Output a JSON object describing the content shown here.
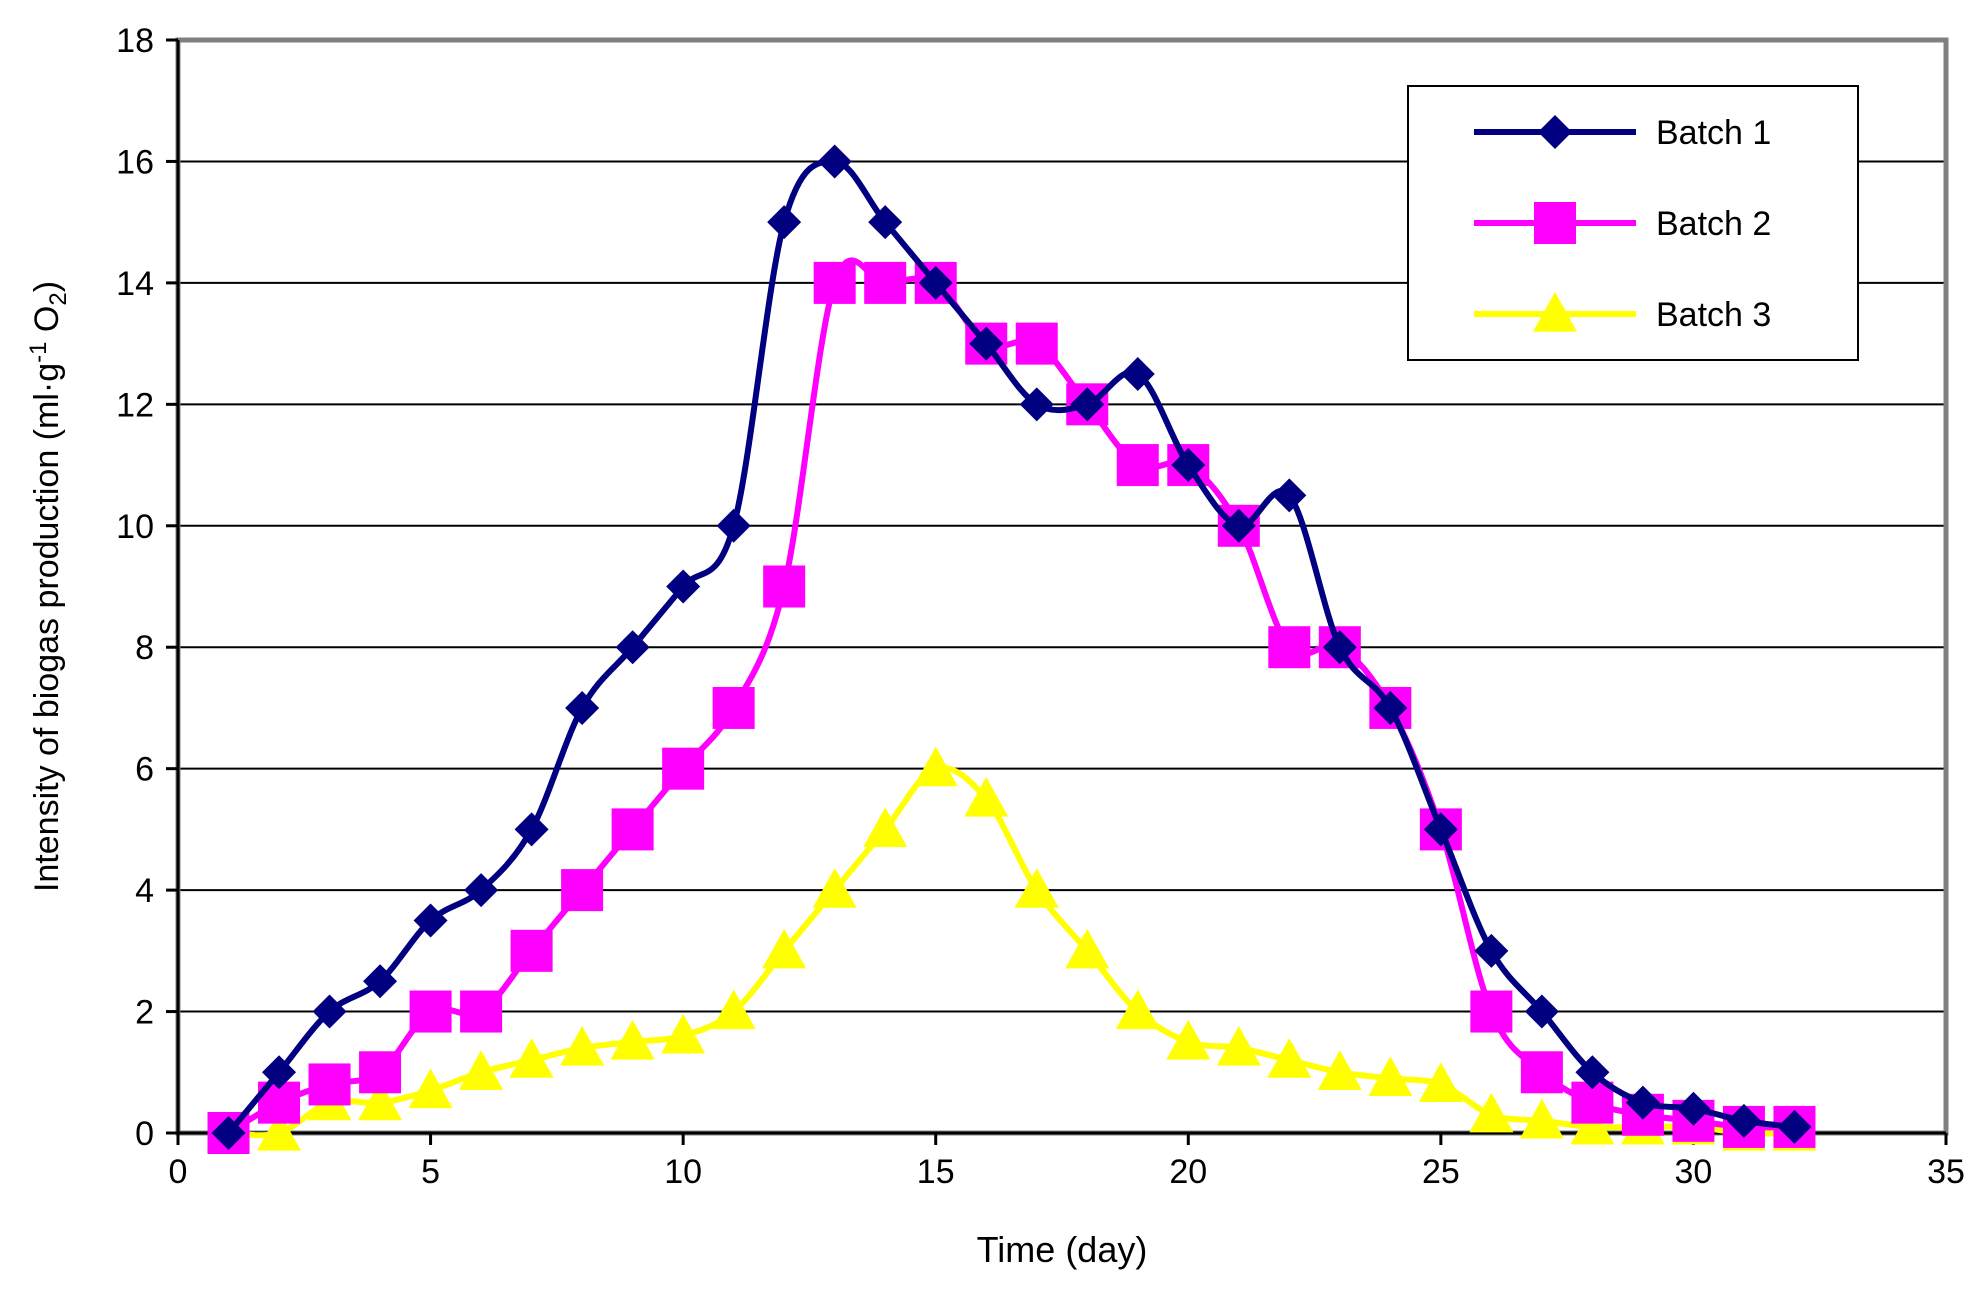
{
  "chart_data": {
    "type": "line",
    "title": "",
    "xlabel": "Time (day)",
    "ylabel_parts": {
      "base": "Intensity of biogas production (ml·g",
      "sup": "-1",
      "middle": " O",
      "sub": "2",
      "end": ")"
    },
    "xlim": [
      0,
      35
    ],
    "ylim": [
      0,
      18
    ],
    "xticks": [
      0,
      5,
      10,
      15,
      20,
      25,
      30,
      35
    ],
    "yticks": [
      0,
      2,
      4,
      6,
      8,
      10,
      12,
      14,
      16,
      18
    ],
    "grid": "horizontal",
    "legend_position": "top-right",
    "series": [
      {
        "name": "Batch 1",
        "marker": "diamond",
        "color": "#000080",
        "x": [
          1,
          2,
          3,
          4,
          5,
          6,
          7,
          8,
          9,
          10,
          11,
          12,
          13,
          14,
          15,
          16,
          17,
          18,
          19,
          20,
          21,
          22,
          23,
          24,
          25,
          26,
          27,
          28,
          29,
          30,
          31,
          32
        ],
        "y": [
          0,
          1,
          2,
          2.5,
          3.5,
          4,
          5,
          7,
          8,
          9,
          10,
          15,
          16,
          15,
          14,
          13,
          12,
          12,
          12.5,
          11,
          10,
          10.5,
          8,
          7,
          5,
          3,
          2,
          1,
          0.5,
          0.4,
          0.2,
          0.1
        ]
      },
      {
        "name": "Batch 2",
        "marker": "square",
        "color": "#FF00FF",
        "x": [
          1,
          2,
          3,
          4,
          5,
          6,
          7,
          8,
          9,
          10,
          11,
          12,
          13,
          14,
          15,
          16,
          17,
          18,
          19,
          20,
          21,
          22,
          23,
          24,
          25,
          26,
          27,
          28,
          29,
          30,
          31,
          32
        ],
        "y": [
          0,
          0.5,
          0.8,
          1,
          2,
          2,
          3,
          4,
          5,
          6,
          7,
          9,
          14,
          14,
          14,
          13,
          13,
          12,
          11,
          11,
          10,
          8,
          8,
          7,
          5,
          2,
          1,
          0.5,
          0.3,
          0.2,
          0.1,
          0.1
        ]
      },
      {
        "name": "Batch 3",
        "marker": "triangle",
        "color": "#FFFF00",
        "x": [
          1,
          2,
          3,
          4,
          5,
          6,
          7,
          8,
          9,
          10,
          11,
          12,
          13,
          14,
          15,
          16,
          17,
          18,
          19,
          20,
          21,
          22,
          23,
          24,
          25,
          26,
          27,
          28,
          29,
          30,
          31,
          32
        ],
        "y": [
          0,
          0,
          0.5,
          0.5,
          0.7,
          1,
          1.2,
          1.4,
          1.5,
          1.6,
          2,
          3,
          4,
          5,
          6,
          5.5,
          4,
          3,
          2,
          1.5,
          1.4,
          1.2,
          1,
          0.9,
          0.8,
          0.3,
          0.2,
          0.1,
          0.1,
          0.1,
          0,
          0
        ]
      }
    ]
  },
  "colors": {
    "frame": "#808080",
    "grid": "#000000",
    "axis": "#000000"
  }
}
